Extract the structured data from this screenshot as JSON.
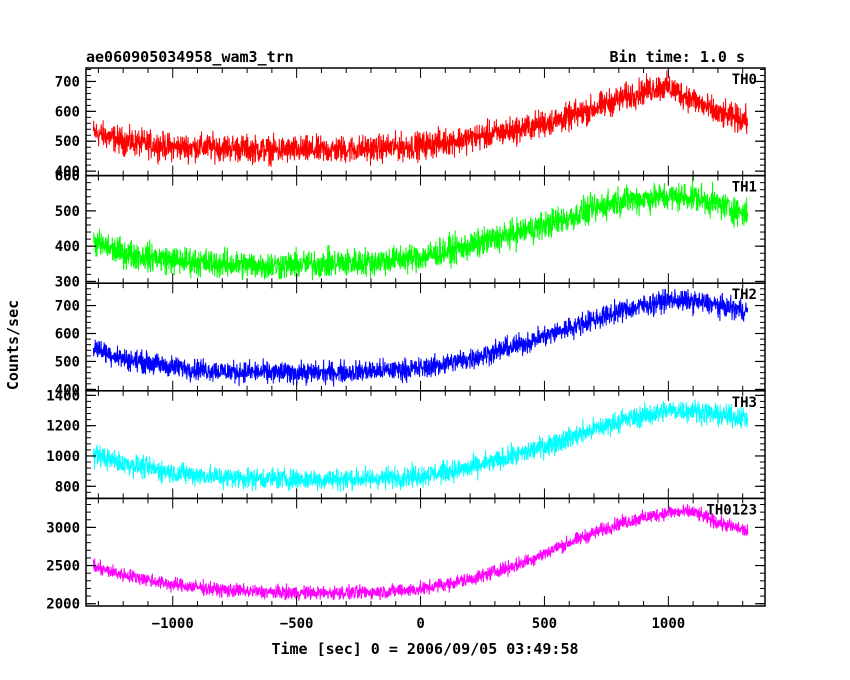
{
  "chart_data": {
    "type": "line",
    "title": "ae060905034958_wam3_trn",
    "bin_time": "Bin time: 1.0 s",
    "xlabel": "Time [sec] 0 = 2006/09/05 03:49:58",
    "ylabel": "Counts/sec",
    "xlim": [
      -1350,
      1390
    ],
    "x_ticks": [
      -1000,
      -500,
      0,
      500,
      1000
    ],
    "x_range": [
      -1320,
      1320
    ],
    "panels": [
      {
        "name": "TH0",
        "color": "#ff0000",
        "ylim": [
          385,
          745
        ],
        "y_ticks": [
          400,
          500,
          600,
          700
        ],
        "noise": 45,
        "trend_x": [
          -1320,
          -1200,
          -1000,
          -800,
          -600,
          -400,
          -200,
          0,
          200,
          400,
          600,
          800,
          950,
          1000,
          1100,
          1200,
          1320
        ],
        "trend_y": [
          530,
          500,
          480,
          480,
          470,
          470,
          475,
          485,
          510,
          540,
          580,
          640,
          680,
          680,
          640,
          590,
          570
        ]
      },
      {
        "name": "TH1",
        "color": "#00ff00",
        "ylim": [
          295,
          600
        ],
        "y_ticks": [
          300,
          400,
          500,
          600
        ],
        "noise": 40,
        "trend_x": [
          -1320,
          -1200,
          -1000,
          -800,
          -600,
          -400,
          -200,
          0,
          200,
          400,
          600,
          800,
          1000,
          1100,
          1200,
          1320
        ],
        "trend_y": [
          410,
          380,
          360,
          350,
          345,
          350,
          355,
          370,
          400,
          440,
          480,
          530,
          540,
          540,
          520,
          490
        ]
      },
      {
        "name": "TH2",
        "color": "#0000ff",
        "ylim": [
          395,
          780
        ],
        "y_ticks": [
          400,
          500,
          600,
          700
        ],
        "noise": 38,
        "trend_x": [
          -1320,
          -1200,
          -1000,
          -800,
          -600,
          -400,
          -200,
          0,
          200,
          400,
          600,
          800,
          1000,
          1100,
          1200,
          1320
        ],
        "trend_y": [
          550,
          510,
          480,
          465,
          460,
          460,
          465,
          475,
          510,
          560,
          620,
          680,
          720,
          715,
          700,
          680
        ]
      },
      {
        "name": "TH3",
        "color": "#00ffff",
        "ylim": [
          720,
          1430
        ],
        "y_ticks": [
          800,
          1000,
          1200,
          1400
        ],
        "noise": 70,
        "trend_x": [
          -1320,
          -1200,
          -1000,
          -800,
          -600,
          -400,
          -200,
          0,
          200,
          400,
          600,
          800,
          1000,
          1100,
          1200,
          1320
        ],
        "trend_y": [
          1010,
          950,
          890,
          860,
          850,
          845,
          850,
          870,
          920,
          1010,
          1120,
          1230,
          1300,
          1300,
          1270,
          1250
        ]
      },
      {
        "name": "TH0123",
        "color": "#ff00ff",
        "ylim": [
          1970,
          3380
        ],
        "y_ticks": [
          2000,
          2500,
          3000
        ],
        "noise": 90,
        "trend_x": [
          -1320,
          -1200,
          -1000,
          -800,
          -600,
          -400,
          -200,
          0,
          200,
          400,
          600,
          800,
          1000,
          1100,
          1200,
          1320
        ],
        "trend_y": [
          2480,
          2380,
          2250,
          2180,
          2150,
          2140,
          2150,
          2190,
          2320,
          2520,
          2800,
          3050,
          3200,
          3200,
          3060,
          2950
        ]
      }
    ]
  }
}
